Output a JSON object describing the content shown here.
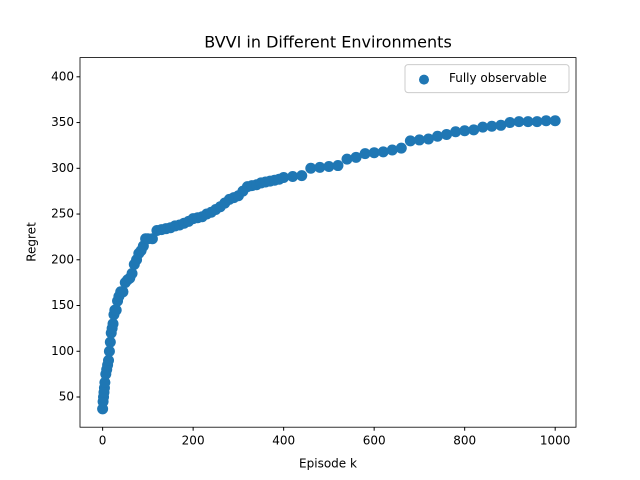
{
  "chart_data": {
    "type": "scatter",
    "title": "BVVI in Different Environments",
    "x_label": "Episode k",
    "y_label": "Regret",
    "xlim": [
      -50,
      1046
    ],
    "ylim": [
      17,
      421
    ],
    "xticks": [
      0,
      200,
      400,
      600,
      800,
      1000
    ],
    "yticks": [
      50,
      100,
      150,
      200,
      250,
      300,
      350,
      400
    ],
    "legend": "upper right",
    "series": [
      {
        "name": "Fully observable",
        "color": "#1f77b4",
        "x": [
          0,
          1,
          2,
          3,
          4,
          5,
          7,
          9,
          11,
          13,
          15,
          17,
          19,
          21,
          23,
          25,
          27,
          30,
          33,
          36,
          40,
          45,
          50,
          55,
          60,
          65,
          70,
          75,
          80,
          85,
          90,
          95,
          100,
          110,
          120,
          130,
          140,
          150,
          160,
          170,
          180,
          190,
          200,
          210,
          220,
          230,
          240,
          250,
          260,
          270,
          280,
          290,
          300,
          310,
          320,
          330,
          340,
          350,
          360,
          370,
          380,
          390,
          400,
          420,
          440,
          460,
          480,
          500,
          520,
          540,
          560,
          580,
          600,
          620,
          640,
          660,
          680,
          700,
          720,
          740,
          760,
          780,
          800,
          820,
          840,
          860,
          880,
          900,
          920,
          940,
          960,
          980,
          1000
        ],
        "values": [
          37,
          45,
          50,
          55,
          60,
          66,
          75,
          80,
          85,
          90,
          100,
          110,
          120,
          125,
          130,
          140,
          145,
          145,
          155,
          160,
          165,
          165,
          175,
          178,
          180,
          185,
          195,
          200,
          207,
          210,
          215,
          223,
          223,
          223,
          232,
          233,
          234,
          235,
          237,
          238,
          240,
          242,
          245,
          246,
          247,
          250,
          252,
          255,
          258,
          262,
          266,
          268,
          270,
          275,
          280,
          281,
          282,
          284,
          285,
          286,
          287,
          288,
          290,
          291,
          292,
          300,
          301,
          302,
          303,
          310,
          312,
          316,
          317,
          318,
          320,
          322,
          330,
          331,
          332,
          335,
          337,
          340,
          341,
          342,
          345,
          346,
          347,
          350,
          351,
          351,
          351,
          352,
          352
        ]
      }
    ]
  }
}
